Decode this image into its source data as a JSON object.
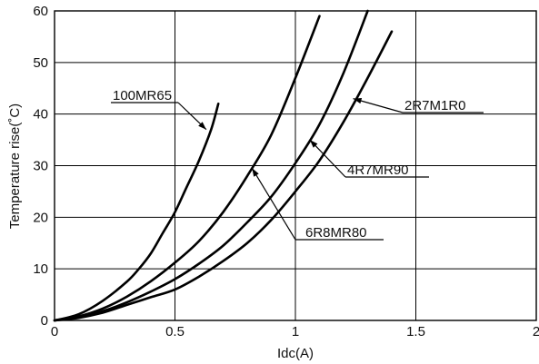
{
  "chart_data": {
    "type": "line",
    "title": "",
    "xlabel": "Idc(A)",
    "ylabel": "Temperature rise(˚C)",
    "xlim": [
      0,
      2
    ],
    "ylim": [
      0,
      60
    ],
    "xticks": [
      "0",
      "0.5",
      "1",
      "1.5",
      "2"
    ],
    "yticks": [
      "0",
      "10",
      "20",
      "30",
      "40",
      "50",
      "60"
    ],
    "grid": true,
    "legend": "none",
    "series": [
      {
        "name": "100MR65",
        "x": [
          0,
          0.1,
          0.2,
          0.3,
          0.35,
          0.4,
          0.45,
          0.5,
          0.55,
          0.6,
          0.65,
          0.68
        ],
        "y": [
          0,
          1.2,
          3.8,
          7.5,
          10,
          13,
          17,
          21,
          26,
          31,
          37,
          42
        ]
      },
      {
        "name": "6R8MR80",
        "x": [
          0,
          0.1,
          0.2,
          0.3,
          0.4,
          0.5,
          0.6,
          0.7,
          0.8,
          0.9,
          1.0,
          1.1
        ],
        "y": [
          0,
          0.8,
          2.3,
          4.6,
          7.6,
          11.2,
          15.4,
          21,
          28,
          36,
          47,
          59
        ]
      },
      {
        "name": "4R7MR90",
        "x": [
          0,
          0.1,
          0.2,
          0.3,
          0.4,
          0.5,
          0.6,
          0.7,
          0.8,
          0.9,
          1.0,
          1.1,
          1.2,
          1.3
        ],
        "y": [
          0,
          0.6,
          1.8,
          3.5,
          5.6,
          8.0,
          11.0,
          14.5,
          19,
          24,
          30.5,
          38,
          48,
          60
        ]
      },
      {
        "name": "2R7M1R0",
        "x": [
          0,
          0.1,
          0.2,
          0.3,
          0.4,
          0.5,
          0.6,
          0.7,
          0.8,
          0.9,
          1.0,
          1.1,
          1.2,
          1.3,
          1.4
        ],
        "y": [
          0,
          0.5,
          1.5,
          3.0,
          4.5,
          6.0,
          8.5,
          11.5,
          15,
          19.5,
          25,
          31,
          38.5,
          47,
          56
        ]
      }
    ],
    "annotations": [
      {
        "text": "100MR65",
        "series": "100MR65"
      },
      {
        "text": "6R8MR80",
        "series": "6R8MR80"
      },
      {
        "text": "4R7MR90",
        "series": "4R7MR90"
      },
      {
        "text": "2R7M1R0",
        "series": "2R7M1R0"
      }
    ]
  }
}
